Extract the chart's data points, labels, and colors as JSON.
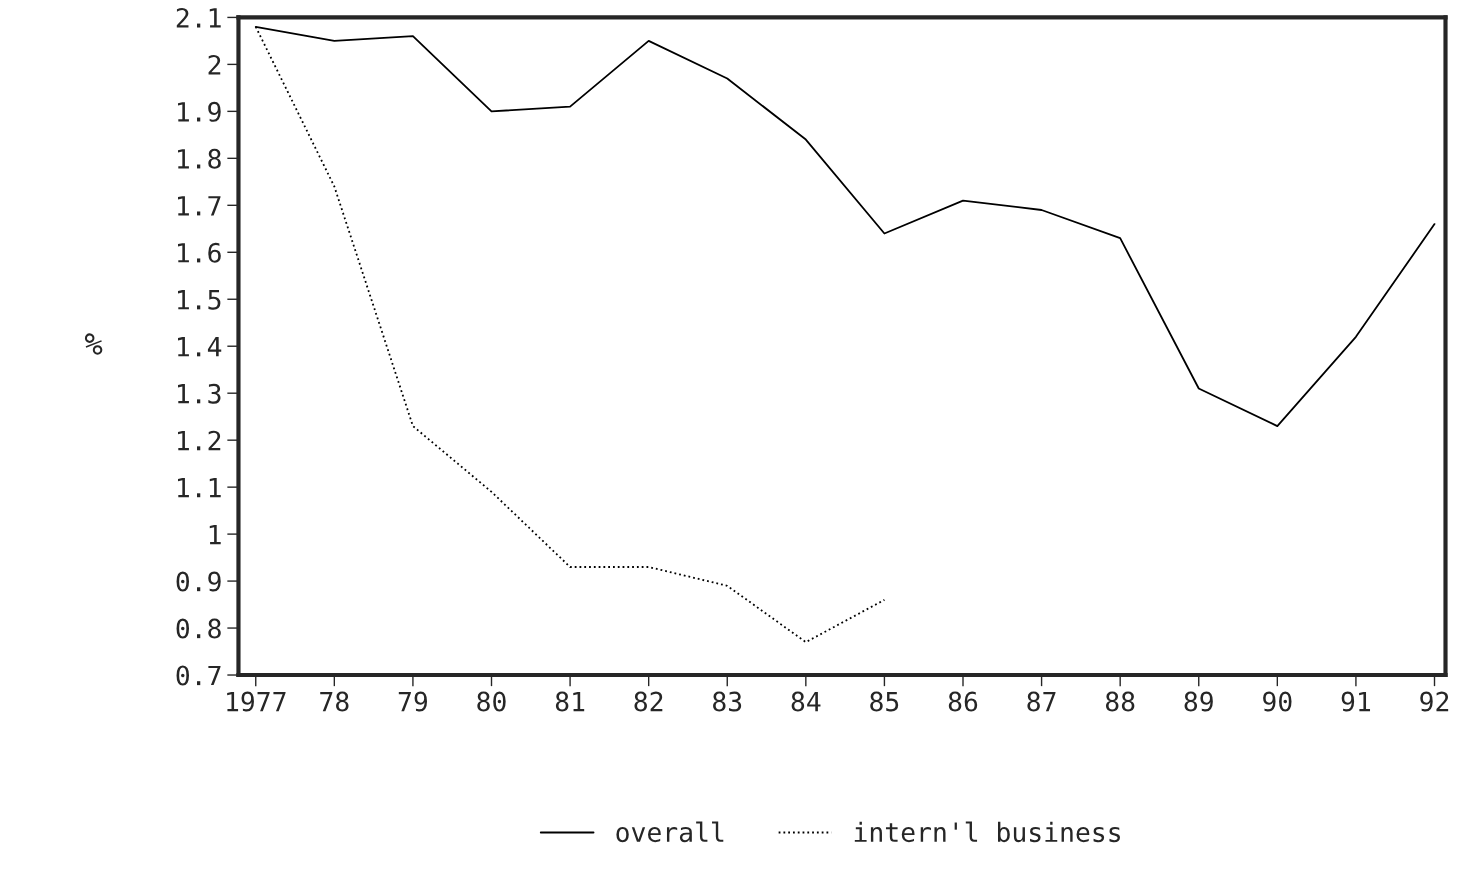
{
  "chart_data": {
    "type": "line",
    "ylabel": "%",
    "x": [
      1977,
      1978,
      1979,
      1980,
      1981,
      1982,
      1983,
      1984,
      1985,
      1986,
      1987,
      1988,
      1989,
      1990,
      1991,
      1992
    ],
    "series": [
      {
        "name": "overall",
        "color": "#000000",
        "line_style": "solid",
        "values": [
          2.08,
          2.05,
          2.06,
          1.9,
          1.91,
          2.05,
          1.97,
          1.84,
          1.64,
          1.71,
          1.69,
          1.63,
          1.31,
          1.23,
          1.42,
          1.66
        ]
      },
      {
        "name": "intern'l business",
        "color": "#000000",
        "line_style": "dotted",
        "values": [
          2.08,
          1.74,
          1.23,
          1.09,
          0.93,
          0.93,
          0.89,
          0.77,
          0.86,
          null,
          null,
          null,
          null,
          null,
          null,
          null
        ]
      }
    ],
    "xlim": [
      1976.78,
      1992.14
    ],
    "xticks": [
      {
        "value": 1977,
        "label": "1977"
      },
      {
        "value": 1978,
        "label": "78"
      },
      {
        "value": 1979,
        "label": "79"
      },
      {
        "value": 1980,
        "label": "80"
      },
      {
        "value": 1981,
        "label": "81"
      },
      {
        "value": 1982,
        "label": "82"
      },
      {
        "value": 1983,
        "label": "83"
      },
      {
        "value": 1984,
        "label": "84"
      },
      {
        "value": 1985,
        "label": "85"
      },
      {
        "value": 1986,
        "label": "86"
      },
      {
        "value": 1987,
        "label": "87"
      },
      {
        "value": 1988,
        "label": "88"
      },
      {
        "value": 1989,
        "label": "89"
      },
      {
        "value": 1990,
        "label": "90"
      },
      {
        "value": 1991,
        "label": "91"
      },
      {
        "value": 1992,
        "label": "92"
      }
    ],
    "ylim": [
      0.7,
      2.1
    ],
    "yticks": [
      0.7,
      0.8,
      0.9,
      1,
      1.1,
      1.2,
      1.3,
      1.4,
      1.5,
      1.6,
      1.7,
      1.8,
      1.9,
      2,
      2.1
    ],
    "grid": false,
    "legend": "bottom",
    "marker": "none"
  }
}
